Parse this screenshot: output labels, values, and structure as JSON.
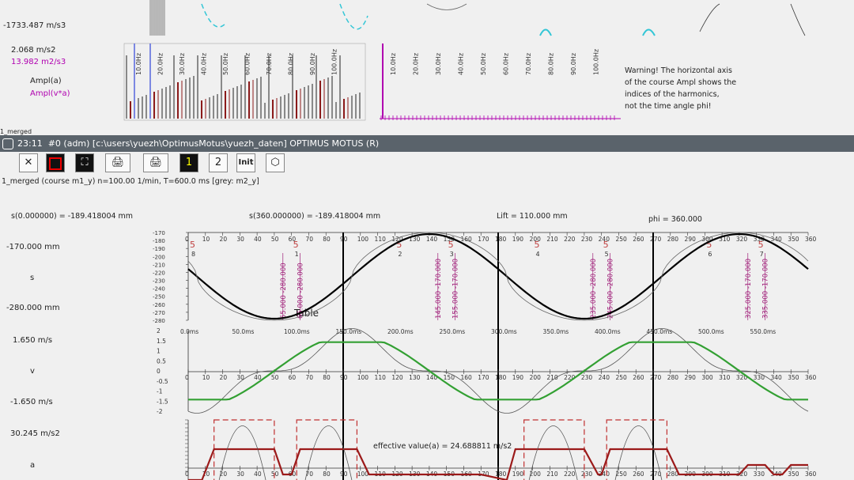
{
  "top_panel": {
    "accel_value": "-1733.487 m/s3",
    "val1": "2.068 m/s2",
    "val2": "13.982 m2/s3",
    "legend1": "Ampl(a)",
    "legend2": "Ampl(v*a)",
    "merged_label": "1_merged",
    "warning": [
      "Warning! The horizontal axis",
      "of the course Ampl shows the",
      "indices of the harmonics,",
      "not the time angle phi!"
    ],
    "freq_labels": [
      "10.0Hz",
      "20.0Hz",
      "30.0Hz",
      "40.0Hz",
      "50.0Hz",
      "60.0Hz",
      "70.0Hz",
      "80.0Hz",
      "90.0Hz",
      "100.0Hz"
    ]
  },
  "window": {
    "time": "23:11",
    "title": "#0 (adm) [c:\\users\\yuezh\\OptimusMotus\\yuezh_daten]  OPTIMUS MOTUS (R)"
  },
  "toolbar": {
    "close_icon": "✕",
    "btn_1": "1",
    "btn_2": "2",
    "init": "Init",
    "table": "Table"
  },
  "chart_header": {
    "subtitle": "1_merged (course m1_y)  n=100.00 1/min, T=600.0 ms [grey: m2_y]",
    "s0": "s(0.000000) = -189.418004 mm",
    "s360": "s(360.000000) = -189.418004 mm",
    "lift": "Lift = 110.000 mm",
    "phi": "phi =  360.000"
  },
  "side_labels": {
    "s_top": "-170.000 mm",
    "s_name": "s",
    "s_bottom": "-280.000 mm",
    "v_top": "1.650 m/s",
    "v_name": "v",
    "v_bottom": "-1.650 m/s",
    "a_top": "30.245 m/s2",
    "a_name": "a"
  },
  "effective_value": "effective value(a) = 24.688811 m/s2",
  "chart_data": [
    {
      "type": "line",
      "title": "s",
      "x_ticks": [
        0,
        10,
        20,
        30,
        40,
        50,
        60,
        70,
        80,
        90,
        100,
        110,
        120,
        130,
        140,
        150,
        160,
        170,
        180,
        190,
        200,
        210,
        220,
        230,
        240,
        250,
        260,
        270,
        280,
        290,
        300,
        310,
        320,
        330,
        340,
        350,
        360
      ],
      "y_ticks": [
        -170,
        -180,
        -190,
        -200,
        -210,
        -220,
        -230,
        -240,
        -250,
        -260,
        -270,
        -280
      ],
      "ylim": [
        -280,
        -170
      ],
      "series": [
        {
          "values_x": [
            0,
            30,
            60,
            90,
            120,
            150,
            180,
            210,
            240,
            270,
            300,
            330,
            360
          ],
          "values_y": [
            -189,
            -240,
            -278,
            -250,
            -190,
            -172,
            -190,
            -248,
            -278,
            -250,
            -190,
            -172,
            -189
          ]
        }
      ],
      "time_ticks": [
        "0.0ms",
        "50.0ms",
        "100.0ms",
        "150.0ms",
        "200.0ms",
        "250.0ms",
        "300.0ms",
        "350.0ms",
        "400.0ms",
        "450.0ms",
        "500.0ms",
        "550.0ms"
      ],
      "segment_labels": [
        "55.000 -280.000",
        "65.000 -280.000",
        "145.000 -170.000",
        "155.000 -170.000",
        "235.000 -280.000",
        "245.000 -280.000",
        "325.000 -170.000",
        "335.000 -170.000"
      ]
    },
    {
      "type": "line",
      "title": "v",
      "y_ticks": [
        2,
        1.5,
        1,
        0.5,
        0,
        -0.5,
        -1,
        -1.5,
        -2
      ],
      "ylim": [
        -2,
        2
      ],
      "x_ticks": [
        0,
        10,
        20,
        30,
        40,
        50,
        60,
        70,
        80,
        90,
        100,
        110,
        120,
        130,
        140,
        150,
        160,
        170,
        180,
        190,
        200,
        210,
        220,
        230,
        240,
        250,
        260,
        270,
        280,
        290,
        300,
        310,
        320,
        330,
        340,
        350,
        360
      ]
    },
    {
      "type": "line",
      "title": "a",
      "x_ticks": [
        0,
        10,
        20,
        30,
        40,
        50,
        60,
        70,
        80,
        90,
        100,
        110,
        120,
        130,
        140,
        150,
        160,
        170,
        180,
        190,
        200,
        210,
        220,
        230,
        240,
        250,
        260,
        270,
        280,
        290,
        300,
        310,
        320,
        330,
        340,
        350,
        360
      ]
    }
  ]
}
